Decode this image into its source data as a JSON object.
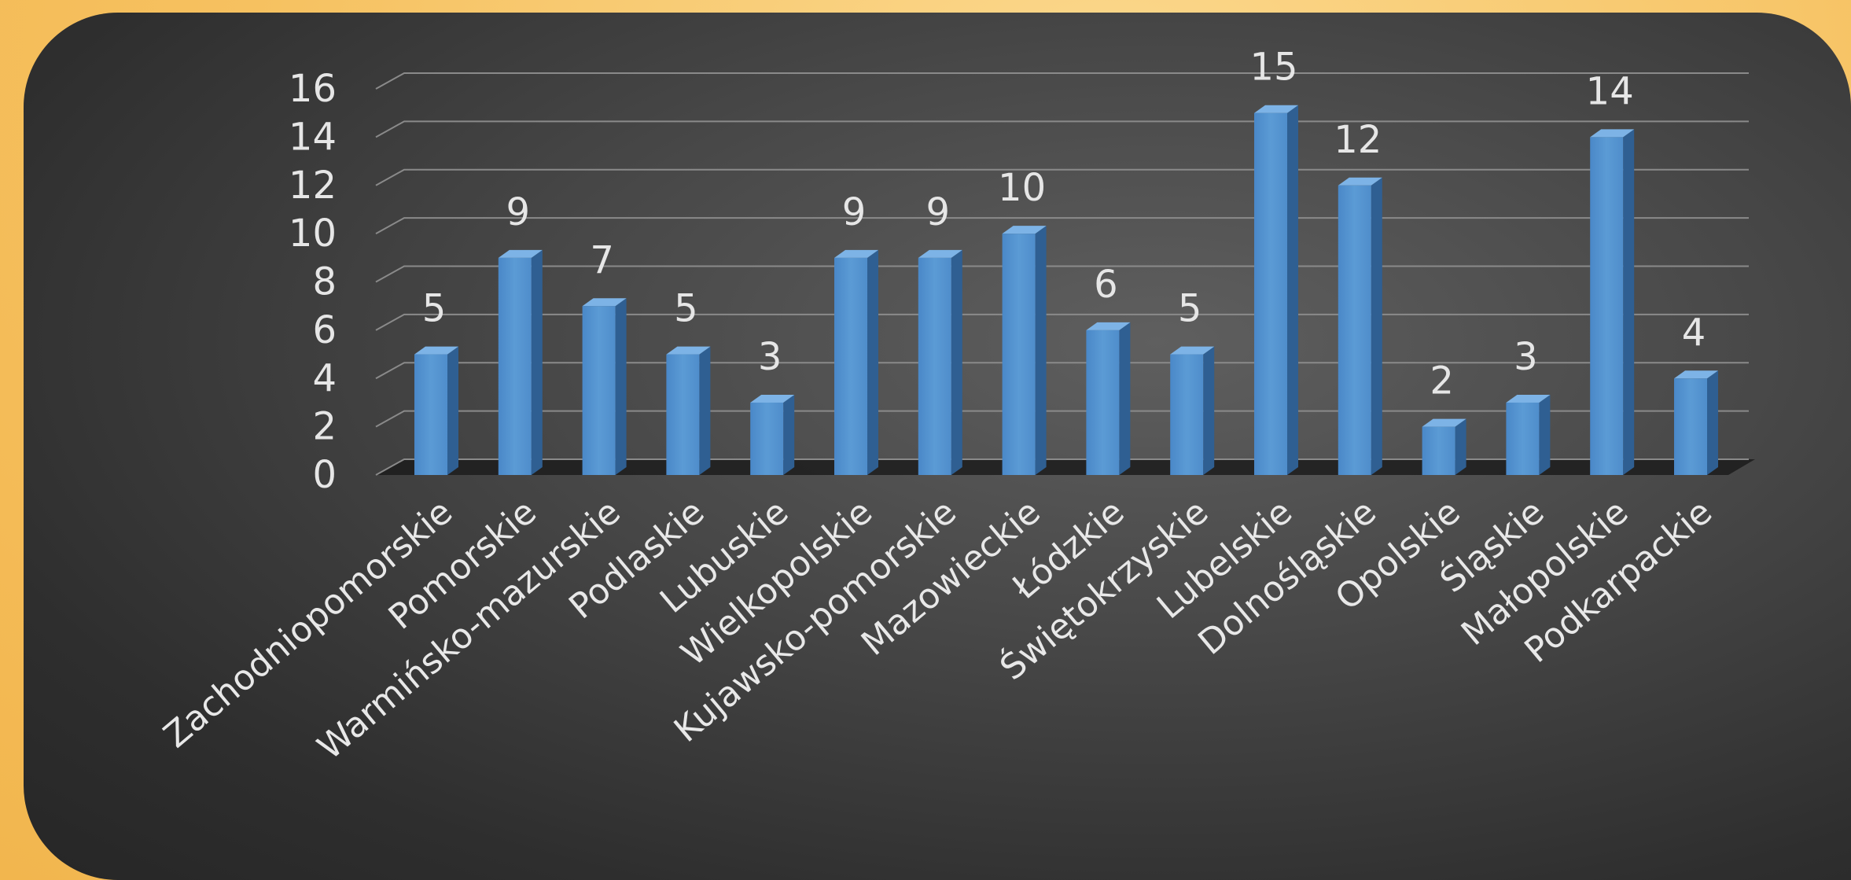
{
  "chart_data": {
    "type": "bar",
    "categories": [
      "Zachodniopomorskie",
      "Pomorskie",
      "Warmińsko-mazurskie",
      "Podlaskie",
      "Lubuskie",
      "Wielkopolskie",
      "Kujawsko-pomorskie",
      "Mazowieckie",
      "Łódzkie",
      "Świętokrzyskie",
      "Lubelskie",
      "Dolnośląskie",
      "Opolskie",
      "Śląskie",
      "Małopolskie",
      "Podkarpackie"
    ],
    "series": [
      {
        "values": [
          5,
          9,
          7,
          5,
          3,
          9,
          9,
          10,
          6,
          5,
          15,
          12,
          2,
          3,
          14,
          4
        ]
      }
    ],
    "y_ticks": [
      "0",
      "2",
      "4",
      "6",
      "8",
      "10",
      "12",
      "14",
      "16"
    ],
    "ylim": [
      0,
      16
    ],
    "grid": true,
    "legend": "none",
    "style": "3d-column",
    "colors": {
      "bar": "#5b9bd5",
      "gridline": "#8a8a8a",
      "text": "#e6e6e6",
      "background": "#3a3a3a",
      "frame": "#f7c56a"
    }
  }
}
